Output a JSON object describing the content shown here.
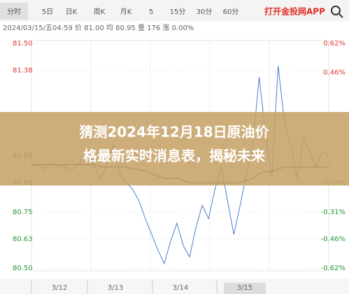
{
  "tabs": [
    "分时",
    "5日",
    "日K",
    "周K",
    "月K",
    "5",
    "15分",
    "30分",
    "60分"
  ],
  "app_link": "打开金投网APP",
  "info": "2024/03/15/五04:59 价 81.00 均 80.95 量 176 涨 0.00%",
  "banner": [
    "猜测2024年12月18日原油价",
    "格最新实时消息表，揭秘未来"
  ],
  "navigator": {
    "labels": [
      "3/12",
      "3/13",
      "3/14",
      "3/15"
    ]
  },
  "chart_data": {
    "type": "line",
    "categories": [
      null,
      null,
      null,
      null,
      null,
      null,
      null,
      null,
      null,
      null,
      null,
      null,
      null,
      null,
      null,
      null,
      null,
      null,
      null,
      null,
      null,
      null,
      null,
      null,
      null,
      null,
      null,
      null,
      null,
      null,
      null,
      null,
      null,
      null,
      null,
      null,
      null,
      null,
      null,
      null,
      null,
      null,
      null,
      null,
      null,
      null,
      null,
      null
    ],
    "series": [
      {
        "name": "价",
        "color": "#4a7fd4",
        "values": [
          80.95,
          80.96,
          80.94,
          80.97,
          80.95,
          80.96,
          80.93,
          80.95,
          80.98,
          81.02,
          80.95,
          80.9,
          80.97,
          81.05,
          80.92,
          80.88,
          80.85,
          80.8,
          80.72,
          80.65,
          80.58,
          80.52,
          80.62,
          80.7,
          80.6,
          80.55,
          80.68,
          80.78,
          80.72,
          80.85,
          80.95,
          80.8,
          80.65,
          80.78,
          80.92,
          81.05,
          81.35,
          81.1,
          80.9,
          81.4,
          81.15,
          81.05,
          80.9,
          81.08,
          81.02,
          80.95,
          81.02,
          81.0
        ]
      },
      {
        "name": "均",
        "color": "#555555",
        "values": [
          80.96,
          80.96,
          80.96,
          80.96,
          80.96,
          80.96,
          80.96,
          80.96,
          80.96,
          80.96,
          80.96,
          80.95,
          80.95,
          80.95,
          80.95,
          80.95,
          80.94,
          80.94,
          80.93,
          80.92,
          80.91,
          80.9,
          80.9,
          80.9,
          80.89,
          80.88,
          80.88,
          80.88,
          80.88,
          80.88,
          80.88,
          80.88,
          80.88,
          80.88,
          80.89,
          80.9,
          80.92,
          80.93,
          80.93,
          80.94,
          80.95,
          80.95,
          80.95,
          80.95,
          80.95,
          80.95,
          80.95,
          80.95
        ]
      }
    ],
    "ylim": [
      80.5,
      81.5
    ],
    "yticks": [
      {
        "value": 81.5,
        "label": "81.50"
      },
      81.38,
      {
        "value": 81.0,
        "label": "81.00"
      },
      80.88,
      80.75,
      80.63,
      {
        "value": 80.5,
        "label": "80.50"
      }
    ],
    "y2lim": [
      -0.62,
      0.62
    ],
    "y2ticks": [
      {
        "value": 0.62,
        "label": "0.62%"
      },
      {
        "value": 0.46,
        "label": "0.46%"
      },
      {
        "value": -0.15,
        "label": "-0.15%"
      },
      {
        "value": -0.31,
        "label": "-0.31%"
      },
      {
        "value": -0.46,
        "label": "-0.46%"
      },
      {
        "value": -0.62,
        "label": "-0.62%"
      }
    ],
    "up_color": "#e23b3b",
    "down_color": "#2a9a3a",
    "grid": true
  }
}
